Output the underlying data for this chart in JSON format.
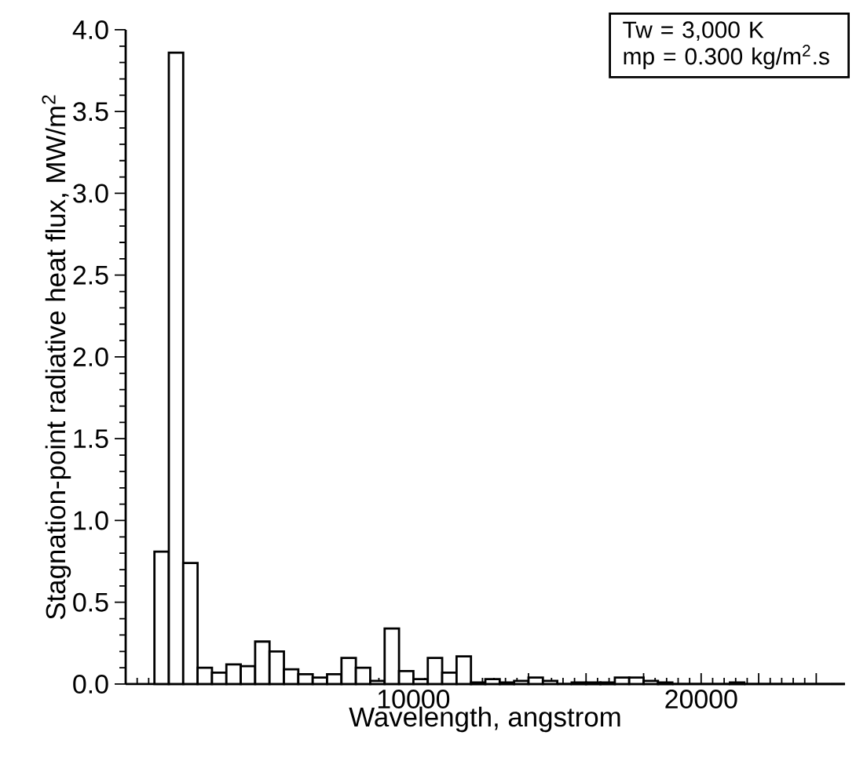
{
  "chart_data": {
    "type": "histogram",
    "xlabel": "Wavelength,   angstrom",
    "ylabel": "Stagnation-point radiative heat flux,   MW/m$^{2}$",
    "annotations": [
      "Tw = 3,000 K",
      "mp = 0.300 kg/m$^{2}$.s"
    ],
    "bins": [
      1000,
      1500,
      2000,
      2500,
      3000,
      3500,
      4000,
      4500,
      5000,
      5500,
      6000,
      6500,
      7000,
      7500,
      8000,
      8500,
      9000,
      9500,
      10000,
      10500,
      11000,
      11500,
      12000,
      12500,
      13000,
      13500,
      14000,
      14500,
      15000,
      15500,
      16000,
      16500,
      17000,
      17500,
      18000,
      18500,
      19000,
      19500,
      20000,
      20500,
      21000,
      21500,
      22000,
      22500,
      23000,
      23500,
      24000,
      24500,
      25000
    ],
    "values": [
      0.81,
      3.86,
      0.74,
      0.1,
      0.07,
      0.12,
      0.11,
      0.26,
      0.2,
      0.09,
      0.06,
      0.04,
      0.06,
      0.16,
      0.1,
      0.02,
      0.34,
      0.08,
      0.03,
      0.16,
      0.07,
      0.17,
      0.01,
      0.03,
      0.01,
      0.02,
      0.04,
      0.02,
      0,
      0.01,
      0.01,
      0.01,
      0.04,
      0.04,
      0.02,
      0.01,
      0,
      0,
      0,
      0,
      0.01,
      0,
      0,
      0,
      0,
      0,
      0,
      0
    ],
    "color": "#ffffff",
    "xlim": [
      0,
      25000
    ],
    "xticks": [
      {
        "value": 0,
        "label": null
      },
      {
        "value": 2000,
        "label": null
      },
      {
        "value": 4000,
        "label": null
      },
      {
        "value": 6000,
        "label": null
      },
      {
        "value": 8000,
        "label": null
      },
      10000,
      {
        "value": 12000,
        "label": null
      },
      {
        "value": 14000,
        "label": null
      },
      {
        "value": 16000,
        "label": null
      },
      {
        "value": 18000,
        "label": null
      },
      20000,
      {
        "value": 22000,
        "label": null
      },
      {
        "value": 24000,
        "label": null
      }
    ],
    "ylim": [
      0,
      4
    ],
    "yticks": [
      {
        "value": 0,
        "label": "0.0"
      },
      0.5,
      {
        "value": 1,
        "label": "1.0"
      },
      1.5,
      {
        "value": 2,
        "label": "2.0"
      },
      2.5,
      {
        "value": 3,
        "label": "3.0"
      },
      3.5,
      {
        "value": 4,
        "label": "4.0"
      }
    ]
  }
}
